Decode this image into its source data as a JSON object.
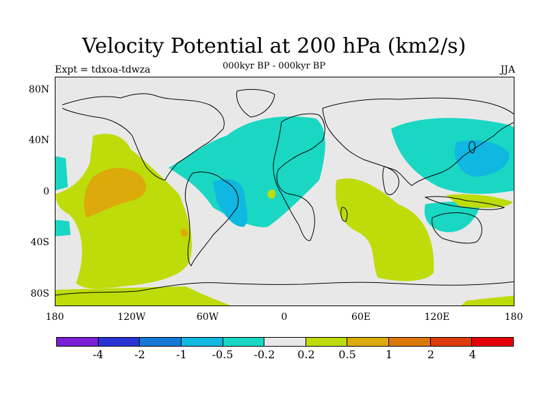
{
  "title": "Velocity Potential at 200 hPa (km2/s)",
  "subtitle": "000kyr BP - 000kyr BP",
  "expt": "Expt = tdxoa-tdwza",
  "season": "JJA",
  "lat_labels": [
    "80N",
    "40N",
    "0",
    "40S",
    "80S"
  ],
  "lon_labels": [
    "180",
    "120W",
    "60W",
    "0",
    "60E",
    "120E",
    "180"
  ],
  "colorbar": {
    "colors": [
      "#7a1fd6",
      "#2a32d6",
      "#1479d6",
      "#10b7e0",
      "#19d7c3",
      "#e8e8e8",
      "#bedc0a",
      "#dcaa0a",
      "#dc780a",
      "#dc3c0a",
      "#e6000a"
    ],
    "labels": [
      "-4",
      "-2",
      "-1",
      "-0.5",
      "-0.2",
      "0.2",
      "0.5",
      "1",
      "2",
      "4"
    ]
  }
}
